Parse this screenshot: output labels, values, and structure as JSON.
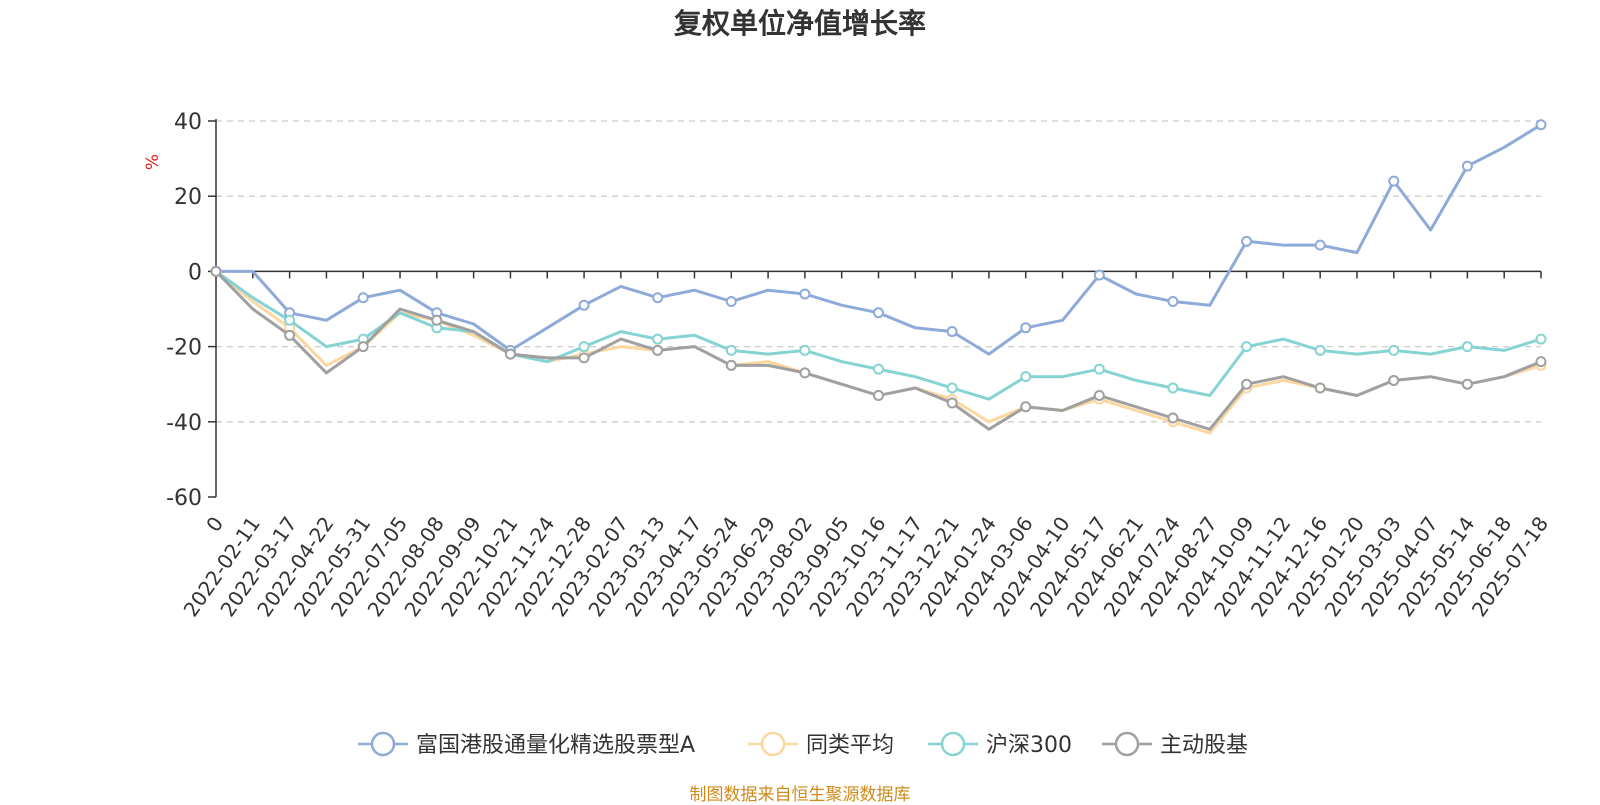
{
  "title": "复权单位净值增长率",
  "source_note": "制图数据来自恒生聚源数据库",
  "chart_data": {
    "type": "line",
    "title": "复权单位净值增长率",
    "ylabel": "%",
    "ylim": [
      -60,
      40
    ],
    "yticks": [
      40,
      20,
      0,
      -20,
      -40,
      -60
    ],
    "grid": true,
    "legend_position": "bottom",
    "x": [
      "0",
      "2022-02-11",
      "2022-03-17",
      "2022-04-22",
      "2022-05-31",
      "2022-07-05",
      "2022-08-08",
      "2022-09-09",
      "2022-10-21",
      "2022-11-24",
      "2022-12-28",
      "2023-02-07",
      "2023-03-13",
      "2023-04-17",
      "2023-05-24",
      "2023-06-29",
      "2023-08-02",
      "2023-09-05",
      "2023-10-16",
      "2023-11-17",
      "2023-12-21",
      "2024-01-24",
      "2024-03-06",
      "2024-04-10",
      "2024-05-17",
      "2024-06-21",
      "2024-07-24",
      "2024-08-27",
      "2024-10-09",
      "2024-11-12",
      "2024-12-16",
      "2025-01-20",
      "2025-03-03",
      "2025-04-07",
      "2025-05-14",
      "2025-06-18",
      "2025-07-18"
    ],
    "series": [
      {
        "name": "富国港股通量化精选股票型A",
        "color": "#8eaad9",
        "values": [
          0,
          0,
          -11,
          -13,
          -7,
          -5,
          -11,
          -14,
          -21,
          -15,
          -9,
          -4,
          -7,
          -5,
          -8,
          -5,
          -6,
          -9,
          -11,
          -15,
          -16,
          -22,
          -15,
          -13,
          -1,
          -6,
          -8,
          -9,
          8,
          7,
          7,
          5,
          24,
          11,
          28,
          33,
          39
        ]
      },
      {
        "name": "同类平均",
        "color": "#fcd79f",
        "values": [
          0,
          -8,
          -15,
          -25,
          -20,
          -11,
          -13,
          -17,
          -22,
          -24,
          -22,
          -20,
          -21,
          -20,
          -25,
          -24,
          -27,
          -30,
          -33,
          -31,
          -34,
          -40,
          -36,
          -37,
          -34,
          -37,
          -40,
          -43,
          -31,
          -29,
          -31,
          -33,
          -29,
          -28,
          -30,
          -28,
          -25
        ]
      },
      {
        "name": "沪深300",
        "color": "#86d3d3",
        "values": [
          0,
          -7,
          -13,
          -20,
          -18,
          -11,
          -15,
          -16,
          -22,
          -24,
          -20,
          -16,
          -18,
          -17,
          -21,
          -22,
          -21,
          -24,
          -26,
          -28,
          -31,
          -34,
          -28,
          -28,
          -26,
          -29,
          -31,
          -33,
          -20,
          -18,
          -21,
          -22,
          -21,
          -22,
          -20,
          -21,
          -18
        ]
      },
      {
        "name": "主动股基",
        "color": "#a0a0a0",
        "values": [
          0,
          -10,
          -17,
          -27,
          -20,
          -10,
          -13,
          -16,
          -22,
          -23,
          -23,
          -18,
          -21,
          -20,
          -25,
          -25,
          -27,
          -30,
          -33,
          -31,
          -35,
          -42,
          -36,
          -37,
          -33,
          -36,
          -39,
          -42,
          -30,
          -28,
          -31,
          -33,
          -29,
          -28,
          -30,
          -28,
          -24
        ]
      }
    ]
  }
}
